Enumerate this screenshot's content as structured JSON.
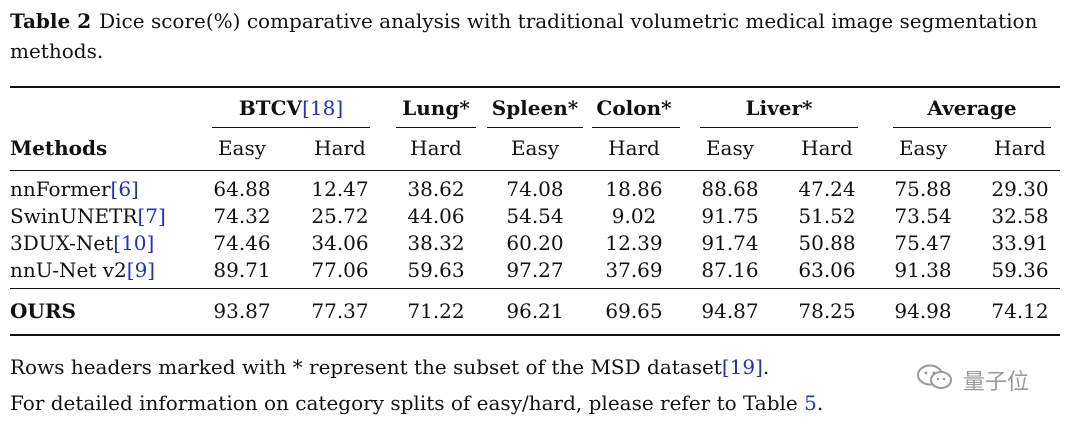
{
  "caption": {
    "tag": "Table 2",
    "text": "Dice score(%) comparative analysis with traditional volumetric medical image segmentation methods."
  },
  "groups": [
    {
      "label": "BTCV",
      "cite": "[18]"
    },
    {
      "label": "Lung*",
      "cite": ""
    },
    {
      "label": "Spleen*",
      "cite": ""
    },
    {
      "label": "Colon*",
      "cite": ""
    },
    {
      "label": "Liver*",
      "cite": ""
    },
    {
      "label": "Average",
      "cite": ""
    }
  ],
  "subheaders": {
    "methods": "Methods",
    "cols": [
      "Easy",
      "Hard",
      "Hard",
      "Easy",
      "Hard",
      "Easy",
      "Hard",
      "Easy",
      "Hard"
    ]
  },
  "rows": [
    {
      "method": "nnFormer",
      "cite": "[6]",
      "values": [
        "64.88",
        "12.47",
        "38.62",
        "74.08",
        "18.86",
        "88.68",
        "47.24",
        "75.88",
        "29.30"
      ]
    },
    {
      "method": "SwinUNETR",
      "cite": "[7]",
      "values": [
        "74.32",
        "25.72",
        "44.06",
        "54.54",
        "9.02",
        "91.75",
        "51.52",
        "73.54",
        "32.58"
      ]
    },
    {
      "method": "3DUX-Net",
      "cite": "[10]",
      "values": [
        "74.46",
        "34.06",
        "38.32",
        "60.20",
        "12.39",
        "91.74",
        "50.88",
        "75.47",
        "33.91"
      ]
    },
    {
      "method": "nnU-Net v2",
      "cite": "[9]",
      "values": [
        "89.71",
        "77.06",
        "59.63",
        "97.27",
        "37.69",
        "87.16",
        "63.06",
        "91.38",
        "59.36"
      ]
    }
  ],
  "ours": {
    "method": "OURS",
    "values": [
      "93.87",
      "77.37",
      "71.22",
      "96.21",
      "69.65",
      "94.87",
      "78.25",
      "94.98",
      "74.12"
    ]
  },
  "notes": {
    "line1_pre": "Rows headers marked with * represent the subset of the MSD dataset",
    "line1_cite": "[19]",
    "line1_post": ".",
    "line2_pre": "For detailed information on category splits of easy/hard, please refer to Table ",
    "line2_ref": "5",
    "line2_post": "."
  },
  "watermark": {
    "text": "量子位",
    "icon": "wechat-icon"
  },
  "colors": {
    "cite": "#2030c0",
    "watermark": "#9a9a9a"
  }
}
